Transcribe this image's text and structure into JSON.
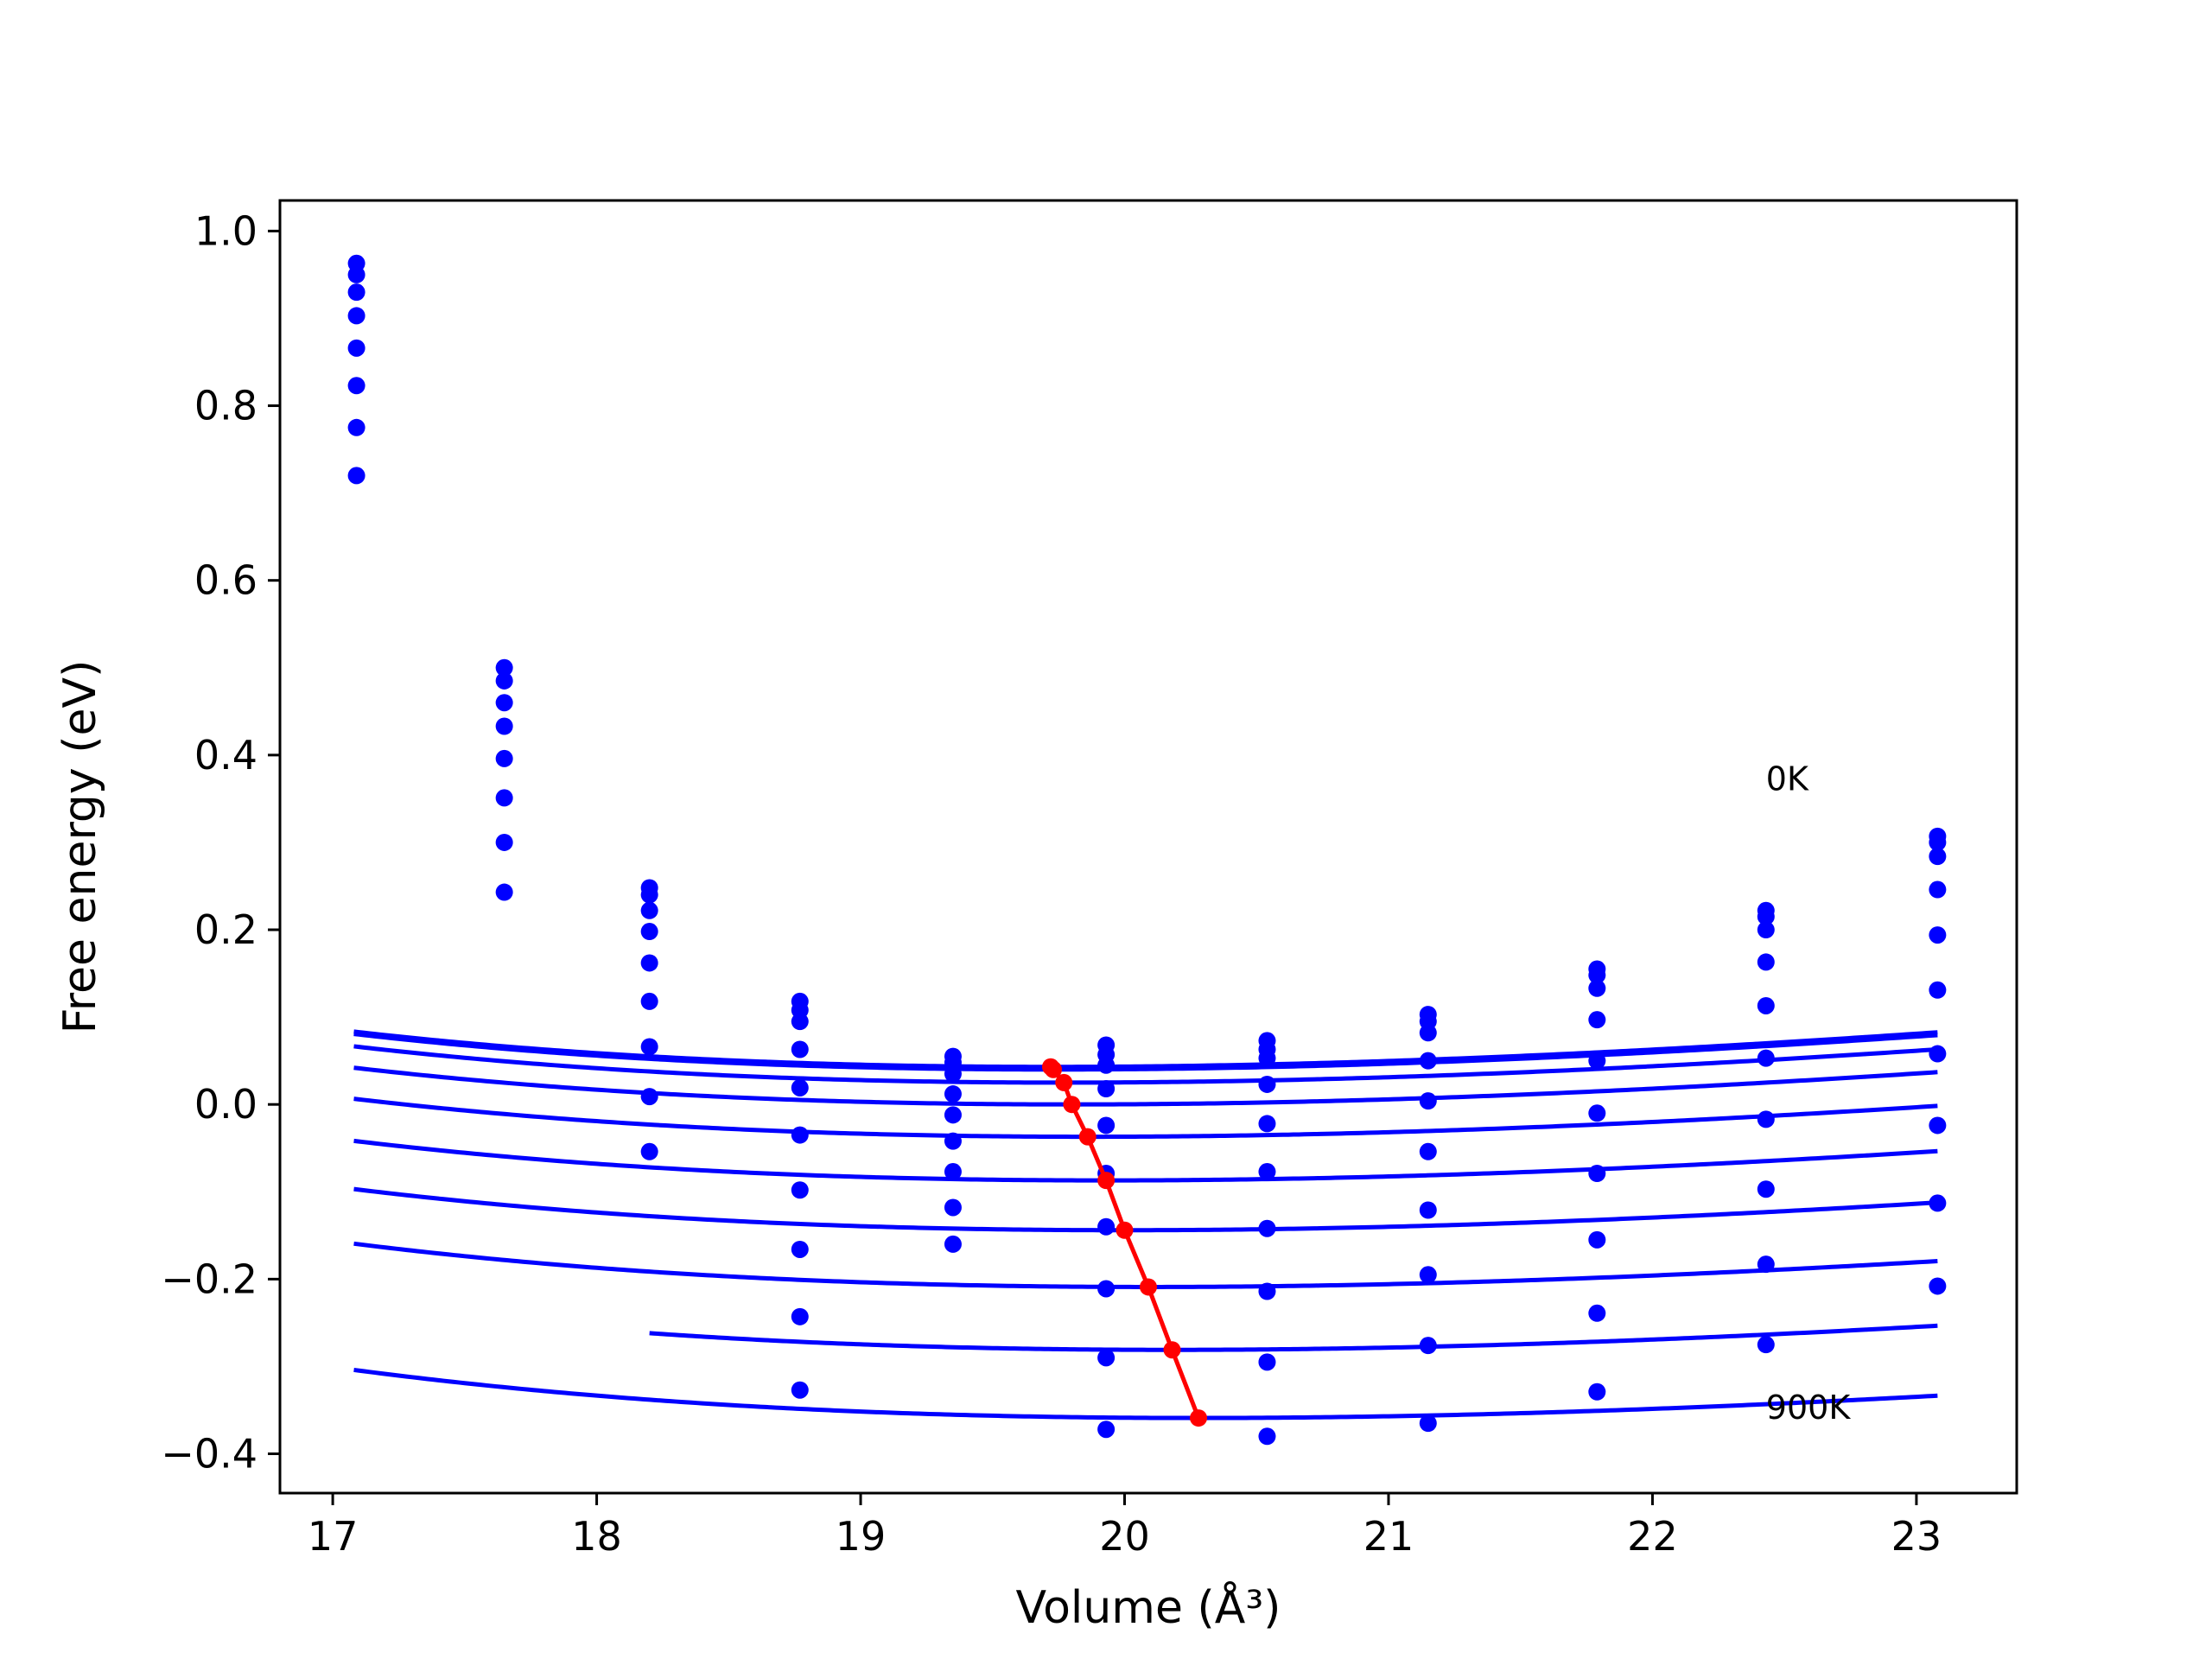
{
  "chart_data": {
    "type": "line",
    "title": "",
    "xlabel": "Volume (Å³)",
    "ylabel": "Free energy (eV)",
    "xlim": [
      16.8,
      23.38
    ],
    "ylim": [
      -0.445,
      1.035
    ],
    "x_ticks": [
      17,
      18,
      19,
      20,
      21,
      22,
      23
    ],
    "y_ticks": [
      -0.4,
      -0.2,
      0.0,
      0.2,
      0.4,
      0.6,
      0.8,
      1.0
    ],
    "x_tick_labels": [
      "17",
      "18",
      "19",
      "20",
      "21",
      "22",
      "23"
    ],
    "y_tick_labels": [
      "−0.4",
      "−0.2",
      "0.0",
      "0.2",
      "0.4",
      "0.6",
      "0.8",
      "1.0"
    ],
    "grid": false,
    "annotations": [
      {
        "text": "0K",
        "x": 22.43,
        "y": 0.36
      },
      {
        "text": "900K",
        "x": 22.43,
        "y": -0.36
      }
    ],
    "fit_curve_color": "#0000ff",
    "point_color": "#0000ff",
    "minima_color": "#ff0000",
    "series": [
      {
        "fit": {
          "v0": 19.72,
          "e0": 0.043,
          "b": 0.18,
          "x_range": [
            17.08,
            23.08
          ]
        },
        "points": [
          [
            17.09,
            0.963
          ],
          [
            17.65,
            0.5
          ],
          [
            18.2,
            0.248
          ],
          [
            18.77,
            0.118
          ],
          [
            19.35,
            0.055
          ],
          [
            19.93,
            0.068
          ],
          [
            20.54,
            0.073
          ],
          [
            21.15,
            0.103
          ],
          [
            21.79,
            0.155
          ],
          [
            22.43,
            0.222
          ],
          [
            23.08,
            0.307
          ]
        ]
      },
      {
        "fit": {
          "v0": 19.73,
          "e0": 0.04,
          "b": 0.18,
          "x_range": [
            17.08,
            23.08
          ]
        },
        "points": [
          [
            17.09,
            0.95
          ],
          [
            17.65,
            0.485
          ],
          [
            18.2,
            0.24
          ],
          [
            18.77,
            0.108
          ],
          [
            19.35,
            0.048
          ],
          [
            19.93,
            0.057
          ],
          [
            20.54,
            0.063
          ],
          [
            21.15,
            0.095
          ],
          [
            21.79,
            0.148
          ],
          [
            22.43,
            0.215
          ],
          [
            23.08,
            0.3
          ]
        ]
      },
      {
        "fit": {
          "v0": 19.77,
          "e0": 0.025,
          "b": 0.178,
          "x_range": [
            17.08,
            23.08
          ]
        },
        "points": [
          [
            17.09,
            0.93
          ],
          [
            17.65,
            0.46
          ],
          [
            18.2,
            0.222
          ],
          [
            18.77,
            0.095
          ],
          [
            19.35,
            0.035
          ],
          [
            19.93,
            0.045
          ],
          [
            20.54,
            0.053
          ],
          [
            21.15,
            0.082
          ],
          [
            21.79,
            0.133
          ],
          [
            22.43,
            0.2
          ],
          [
            23.08,
            0.284
          ]
        ]
      },
      {
        "fit": {
          "v0": 19.8,
          "e0": 0.0,
          "b": 0.176,
          "x_range": [
            17.08,
            23.08
          ]
        },
        "points": [
          [
            17.09,
            0.903
          ],
          [
            17.65,
            0.433
          ],
          [
            18.2,
            0.198
          ],
          [
            18.77,
            0.063
          ],
          [
            19.35,
            0.012
          ],
          [
            19.93,
            0.018
          ],
          [
            20.54,
            0.023
          ],
          [
            21.15,
            0.05
          ],
          [
            21.79,
            0.097
          ],
          [
            22.43,
            0.163
          ],
          [
            23.08,
            0.246
          ]
        ]
      },
      {
        "fit": {
          "v0": 19.86,
          "e0": -0.037,
          "b": 0.174,
          "x_range": [
            17.08,
            23.08
          ]
        },
        "points": [
          [
            17.09,
            0.866
          ],
          [
            17.65,
            0.396
          ],
          [
            18.2,
            0.162
          ],
          [
            18.77,
            0.019
          ],
          [
            19.35,
            -0.012
          ],
          [
            19.93,
            -0.024
          ],
          [
            20.54,
            -0.022
          ],
          [
            21.15,
            0.004
          ],
          [
            21.79,
            0.05
          ],
          [
            22.43,
            0.113
          ],
          [
            23.08,
            0.194
          ]
        ]
      },
      {
        "fit": {
          "v0": 19.93,
          "e0": -0.087,
          "b": 0.172,
          "x_range": [
            17.08,
            23.08
          ]
        },
        "points": [
          [
            17.09,
            0.823
          ],
          [
            17.65,
            0.351
          ],
          [
            18.2,
            0.118
          ],
          [
            18.77,
            -0.035
          ],
          [
            19.35,
            -0.042
          ],
          [
            19.93,
            -0.079
          ],
          [
            20.54,
            -0.077
          ],
          [
            21.15,
            -0.054
          ],
          [
            21.79,
            -0.01
          ],
          [
            22.43,
            0.053
          ],
          [
            23.08,
            0.131
          ]
        ]
      },
      {
        "fit": {
          "v0": 20.0,
          "e0": -0.144,
          "b": 0.17,
          "x_range": [
            17.08,
            23.08
          ]
        },
        "points": [
          [
            17.09,
            0.775
          ],
          [
            17.65,
            0.3
          ],
          [
            18.2,
            0.066
          ],
          [
            18.77,
            -0.098
          ],
          [
            19.35,
            -0.077
          ],
          [
            19.93,
            -0.14
          ],
          [
            20.54,
            -0.142
          ],
          [
            21.15,
            -0.121
          ],
          [
            21.79,
            -0.079
          ],
          [
            22.43,
            -0.017
          ],
          [
            23.08,
            0.058
          ]
        ]
      },
      {
        "fit": {
          "v0": 20.09,
          "e0": -0.209,
          "b": 0.168,
          "x_range": [
            17.08,
            23.08
          ]
        },
        "points": [
          [
            17.09,
            0.72
          ],
          [
            17.65,
            0.243
          ],
          [
            18.2,
            0.009
          ],
          [
            18.77,
            -0.166
          ],
          [
            19.35,
            -0.118
          ],
          [
            19.93,
            -0.211
          ],
          [
            20.54,
            -0.214
          ],
          [
            21.15,
            -0.195
          ],
          [
            21.79,
            -0.155
          ],
          [
            22.43,
            -0.097
          ],
          [
            23.08,
            -0.024
          ]
        ]
      },
      {
        "fit": {
          "v0": 20.18,
          "e0": -0.281,
          "b": 0.166,
          "x_range": [
            18.2,
            23.08
          ]
        },
        "points": [
          [
            18.2,
            -0.054
          ],
          [
            18.77,
            -0.243
          ],
          [
            19.35,
            -0.16
          ],
          [
            19.93,
            -0.29
          ],
          [
            20.54,
            -0.295
          ],
          [
            21.15,
            -0.276
          ],
          [
            21.79,
            -0.239
          ],
          [
            22.43,
            -0.183
          ],
          [
            23.08,
            -0.113
          ]
        ]
      },
      {
        "fit": {
          "v0": 20.28,
          "e0": -0.359,
          "b": 0.164,
          "x_range": [
            17.08,
            23.08
          ]
        },
        "points": [
          [
            18.77,
            -0.327
          ],
          [
            19.93,
            -0.372
          ],
          [
            20.54,
            -0.38
          ],
          [
            21.15,
            -0.365
          ],
          [
            21.79,
            -0.329
          ],
          [
            22.43,
            -0.275
          ],
          [
            23.08,
            -0.208
          ]
        ]
      }
    ],
    "minima_line": {
      "x": [
        19.72,
        19.73,
        19.77,
        19.8,
        19.86,
        19.93,
        20.0,
        20.09,
        20.18,
        20.28
      ],
      "y": [
        0.043,
        0.04,
        0.025,
        0.0,
        -0.037,
        -0.087,
        -0.144,
        -0.209,
        -0.281,
        -0.359
      ]
    }
  }
}
